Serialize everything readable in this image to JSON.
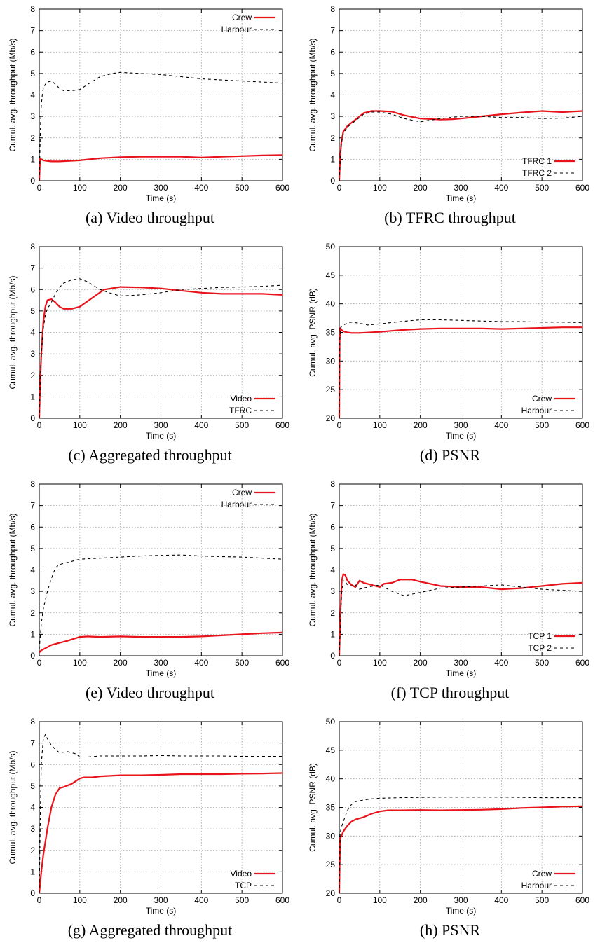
{
  "chart_data": [
    {
      "type": "line",
      "caption": "(a) Video throughput",
      "xlabel": "Time (s)",
      "ylabel": "Cumul. avg. throughput (Mb/s)",
      "xlim": [
        0,
        600
      ],
      "ylim": [
        0,
        8
      ],
      "xticks": [
        0,
        100,
        200,
        300,
        400,
        500,
        600
      ],
      "yticks": [
        0,
        1,
        2,
        3,
        4,
        5,
        6,
        7,
        8
      ],
      "grid": true,
      "legend": "top-right",
      "series": [
        {
          "name": "Crew",
          "style": "solid",
          "color": "#e8131b",
          "x": [
            0,
            2,
            5,
            10,
            20,
            30,
            50,
            80,
            100,
            150,
            200,
            250,
            300,
            350,
            400,
            450,
            500,
            550,
            600
          ],
          "y": [
            0,
            1.05,
            1.0,
            0.95,
            0.92,
            0.9,
            0.9,
            0.93,
            0.95,
            1.05,
            1.1,
            1.12,
            1.12,
            1.12,
            1.08,
            1.12,
            1.15,
            1.18,
            1.2
          ]
        },
        {
          "name": "Harbour",
          "style": "dashed",
          "color": "#000000",
          "x": [
            0,
            3,
            5,
            8,
            10,
            15,
            20,
            30,
            40,
            50,
            60,
            80,
            100,
            120,
            150,
            180,
            200,
            250,
            300,
            350,
            400,
            450,
            500,
            550,
            600
          ],
          "y": [
            0,
            2.5,
            3.5,
            4.1,
            4.3,
            4.5,
            4.6,
            4.65,
            4.5,
            4.3,
            4.2,
            4.2,
            4.25,
            4.5,
            4.85,
            5.0,
            5.05,
            5.0,
            4.95,
            4.85,
            4.75,
            4.7,
            4.65,
            4.6,
            4.55
          ]
        }
      ]
    },
    {
      "type": "line",
      "caption": "(b) TFRC throughput",
      "xlabel": "Time (s)",
      "ylabel": "Cumul. avg. throughput (Mb/s)",
      "xlim": [
        0,
        600
      ],
      "ylim": [
        0,
        8
      ],
      "xticks": [
        0,
        100,
        200,
        300,
        400,
        500,
        600
      ],
      "yticks": [
        0,
        1,
        2,
        3,
        4,
        5,
        6,
        7,
        8
      ],
      "grid": true,
      "legend": "bottom-right",
      "series": [
        {
          "name": "TFRC 1",
          "style": "solid",
          "color": "#e8131b",
          "x": [
            0,
            2,
            5,
            10,
            20,
            30,
            40,
            60,
            80,
            100,
            130,
            160,
            200,
            250,
            280,
            300,
            350,
            400,
            450,
            500,
            550,
            600
          ],
          "y": [
            0,
            1.0,
            1.8,
            2.3,
            2.55,
            2.7,
            2.85,
            3.15,
            3.25,
            3.25,
            3.22,
            3.05,
            2.9,
            2.85,
            2.87,
            2.9,
            3.0,
            3.1,
            3.18,
            3.25,
            3.2,
            3.25
          ]
        },
        {
          "name": "TFRC 2",
          "style": "dashed",
          "color": "#000000",
          "x": [
            0,
            2,
            5,
            10,
            20,
            30,
            40,
            60,
            80,
            100,
            130,
            160,
            200,
            250,
            300,
            350,
            400,
            450,
            500,
            550,
            600
          ],
          "y": [
            0,
            0.9,
            1.7,
            2.2,
            2.5,
            2.65,
            2.8,
            3.1,
            3.2,
            3.2,
            3.1,
            2.9,
            2.75,
            2.9,
            3.0,
            3.0,
            2.95,
            2.95,
            2.9,
            2.92,
            3.0
          ]
        }
      ]
    },
    {
      "type": "line",
      "caption": "(c) Aggregated throughput",
      "xlabel": "Time (s)",
      "ylabel": "Cumul. avg. throughput (Mb/s)",
      "xlim": [
        0,
        600
      ],
      "ylim": [
        0,
        8
      ],
      "xticks": [
        0,
        100,
        200,
        300,
        400,
        500,
        600
      ],
      "yticks": [
        0,
        1,
        2,
        3,
        4,
        5,
        6,
        7,
        8
      ],
      "grid": true,
      "legend": "bottom-right",
      "series": [
        {
          "name": "Video",
          "style": "solid",
          "color": "#e8131b",
          "x": [
            0,
            2,
            5,
            10,
            15,
            20,
            30,
            40,
            50,
            60,
            80,
            100,
            130,
            160,
            200,
            250,
            300,
            350,
            400,
            450,
            500,
            550,
            600
          ],
          "y": [
            0,
            1.5,
            3.0,
            4.5,
            5.2,
            5.5,
            5.55,
            5.4,
            5.2,
            5.1,
            5.1,
            5.2,
            5.6,
            6.0,
            6.12,
            6.1,
            6.05,
            5.95,
            5.85,
            5.8,
            5.8,
            5.8,
            5.75
          ]
        },
        {
          "name": "TFRC",
          "style": "dashed",
          "color": "#000000",
          "x": [
            0,
            2,
            5,
            10,
            15,
            20,
            30,
            40,
            50,
            60,
            80,
            100,
            120,
            150,
            180,
            200,
            250,
            300,
            350,
            400,
            450,
            500,
            550,
            600
          ],
          "y": [
            0,
            1.5,
            3.0,
            4.2,
            4.8,
            5.1,
            5.4,
            5.8,
            6.1,
            6.3,
            6.45,
            6.5,
            6.35,
            6.0,
            5.8,
            5.7,
            5.75,
            5.85,
            6.0,
            6.05,
            6.1,
            6.12,
            6.15,
            6.2
          ]
        }
      ]
    },
    {
      "type": "line",
      "caption": "(d) PSNR",
      "xlabel": "Time (s)",
      "ylabel": "Cumul. avg. PSNR (dB)",
      "xlim": [
        0,
        600
      ],
      "ylim": [
        20,
        50
      ],
      "xticks": [
        0,
        100,
        200,
        300,
        400,
        500,
        600
      ],
      "yticks": [
        20,
        25,
        30,
        35,
        40,
        45,
        50
      ],
      "grid": true,
      "legend": "bottom-right",
      "series": [
        {
          "name": "Crew",
          "style": "solid",
          "color": "#e8131b",
          "x": [
            0,
            1,
            3,
            5,
            10,
            20,
            30,
            50,
            100,
            150,
            200,
            250,
            300,
            350,
            400,
            450,
            500,
            550,
            600
          ],
          "y": [
            20,
            34,
            35.8,
            35.5,
            35.2,
            35.0,
            34.9,
            34.9,
            35.1,
            35.4,
            35.6,
            35.7,
            35.7,
            35.7,
            35.6,
            35.7,
            35.8,
            35.9,
            35.9
          ]
        },
        {
          "name": "Harbour",
          "style": "dashed",
          "color": "#000000",
          "x": [
            0,
            1,
            3,
            5,
            10,
            20,
            30,
            50,
            70,
            100,
            150,
            200,
            250,
            300,
            350,
            400,
            450,
            500,
            550,
            600
          ],
          "y": [
            20,
            33,
            35.5,
            36.0,
            36.3,
            36.6,
            36.8,
            36.6,
            36.3,
            36.5,
            36.9,
            37.2,
            37.2,
            37.1,
            37.0,
            36.9,
            36.9,
            36.8,
            36.8,
            36.7
          ]
        }
      ]
    },
    {
      "type": "line",
      "caption": "(e) Video throughput",
      "xlabel": "Time (s)",
      "ylabel": "Cumul. avg. throughput (Mb/s)",
      "xlim": [
        0,
        600
      ],
      "ylim": [
        0,
        8
      ],
      "xticks": [
        0,
        100,
        200,
        300,
        400,
        500,
        600
      ],
      "yticks": [
        0,
        1,
        2,
        3,
        4,
        5,
        6,
        7,
        8
      ],
      "grid": true,
      "legend": "top-right",
      "series": [
        {
          "name": "Crew",
          "style": "solid",
          "color": "#e8131b",
          "x": [
            0,
            5,
            10,
            20,
            30,
            50,
            70,
            90,
            100,
            120,
            150,
            200,
            250,
            300,
            350,
            400,
            450,
            500,
            550,
            600
          ],
          "y": [
            0.15,
            0.25,
            0.3,
            0.4,
            0.5,
            0.6,
            0.7,
            0.82,
            0.88,
            0.9,
            0.88,
            0.9,
            0.88,
            0.88,
            0.88,
            0.9,
            0.95,
            1.0,
            1.05,
            1.08
          ]
        },
        {
          "name": "Harbour",
          "style": "dashed",
          "color": "#000000",
          "x": [
            0,
            5,
            10,
            20,
            30,
            40,
            50,
            60,
            80,
            100,
            150,
            200,
            250,
            300,
            350,
            400,
            450,
            500,
            550,
            600
          ],
          "y": [
            0.3,
            1.5,
            2.2,
            3.0,
            3.6,
            4.1,
            4.25,
            4.3,
            4.4,
            4.5,
            4.55,
            4.6,
            4.65,
            4.68,
            4.7,
            4.65,
            4.62,
            4.6,
            4.55,
            4.5
          ]
        }
      ]
    },
    {
      "type": "line",
      "caption": "(f) TCP throughput",
      "xlabel": "Time (s)",
      "ylabel": "Cumul. avg. throughput (Mb/s)",
      "xlim": [
        0,
        600
      ],
      "ylim": [
        0,
        8
      ],
      "xticks": [
        0,
        100,
        200,
        300,
        400,
        500,
        600
      ],
      "yticks": [
        0,
        1,
        2,
        3,
        4,
        5,
        6,
        7,
        8
      ],
      "grid": true,
      "legend": "bottom-right",
      "series": [
        {
          "name": "TCP 1",
          "style": "solid",
          "color": "#e8131b",
          "x": [
            0,
            3,
            6,
            10,
            15,
            20,
            30,
            40,
            50,
            60,
            80,
            100,
            110,
            130,
            150,
            180,
            200,
            250,
            300,
            350,
            400,
            450,
            500,
            550,
            600
          ],
          "y": [
            0,
            2.0,
            3.5,
            3.8,
            3.75,
            3.5,
            3.3,
            3.2,
            3.5,
            3.4,
            3.3,
            3.2,
            3.35,
            3.4,
            3.55,
            3.55,
            3.45,
            3.25,
            3.2,
            3.2,
            3.1,
            3.15,
            3.25,
            3.35,
            3.4
          ]
        },
        {
          "name": "TCP 2",
          "style": "dashed",
          "color": "#000000",
          "x": [
            0,
            3,
            6,
            10,
            15,
            20,
            30,
            40,
            50,
            70,
            100,
            130,
            160,
            200,
            250,
            300,
            350,
            400,
            450,
            500,
            550,
            600
          ],
          "y": [
            0,
            1.5,
            3.0,
            3.5,
            3.45,
            3.3,
            3.25,
            3.3,
            3.1,
            3.2,
            3.3,
            3.0,
            2.8,
            2.95,
            3.15,
            3.2,
            3.25,
            3.3,
            3.2,
            3.1,
            3.05,
            3.0
          ]
        }
      ]
    },
    {
      "type": "line",
      "caption": "(g) Aggregated throughput",
      "xlabel": "Time (s)",
      "ylabel": "Cumul. avg. throughput (Mb/s)",
      "xlim": [
        0,
        600
      ],
      "ylim": [
        0,
        8
      ],
      "xticks": [
        0,
        100,
        200,
        300,
        400,
        500,
        600
      ],
      "yticks": [
        0,
        1,
        2,
        3,
        4,
        5,
        6,
        7,
        8
      ],
      "grid": true,
      "legend": "bottom-right",
      "series": [
        {
          "name": "Video",
          "style": "solid",
          "color": "#e8131b",
          "x": [
            0,
            5,
            10,
            20,
            30,
            40,
            50,
            60,
            80,
            100,
            110,
            130,
            150,
            200,
            250,
            300,
            350,
            400,
            450,
            500,
            550,
            600
          ],
          "y": [
            0,
            1.0,
            1.8,
            3.0,
            4.0,
            4.6,
            4.9,
            4.95,
            5.1,
            5.35,
            5.4,
            5.4,
            5.45,
            5.5,
            5.5,
            5.52,
            5.55,
            5.55,
            5.55,
            5.57,
            5.58,
            5.6
          ]
        },
        {
          "name": "TCP",
          "style": "dashed",
          "color": "#000000",
          "x": [
            0,
            3,
            5,
            10,
            15,
            20,
            30,
            40,
            50,
            70,
            90,
            100,
            120,
            150,
            200,
            250,
            300,
            350,
            400,
            450,
            500,
            550,
            600
          ],
          "y": [
            0,
            4.0,
            6.0,
            7.2,
            7.4,
            7.2,
            6.9,
            6.7,
            6.55,
            6.6,
            6.5,
            6.35,
            6.35,
            6.4,
            6.4,
            6.4,
            6.42,
            6.4,
            6.4,
            6.4,
            6.38,
            6.38,
            6.38
          ]
        }
      ]
    },
    {
      "type": "line",
      "caption": "(h) PSNR",
      "xlabel": "Time (s)",
      "ylabel": "Cumul. avg. PSNR (dB)",
      "xlim": [
        0,
        600
      ],
      "ylim": [
        20,
        50
      ],
      "xticks": [
        0,
        100,
        200,
        300,
        400,
        500,
        600
      ],
      "yticks": [
        20,
        25,
        30,
        35,
        40,
        45,
        50
      ],
      "grid": true,
      "legend": "bottom-right",
      "series": [
        {
          "name": "Crew",
          "style": "solid",
          "color": "#e8131b",
          "x": [
            0,
            2,
            5,
            10,
            20,
            30,
            40,
            60,
            80,
            100,
            120,
            150,
            200,
            250,
            300,
            350,
            400,
            450,
            500,
            550,
            600
          ],
          "y": [
            20,
            29.5,
            30.0,
            30.8,
            31.8,
            32.5,
            32.9,
            33.3,
            33.9,
            34.3,
            34.5,
            34.5,
            34.55,
            34.5,
            34.55,
            34.6,
            34.7,
            34.9,
            35.0,
            35.15,
            35.2
          ]
        },
        {
          "name": "Harbour",
          "style": "dashed",
          "color": "#000000",
          "x": [
            0,
            2,
            5,
            10,
            20,
            30,
            40,
            60,
            80,
            100,
            150,
            200,
            250,
            300,
            350,
            400,
            450,
            500,
            550,
            600
          ],
          "y": [
            20,
            30.5,
            31.5,
            32.5,
            34.5,
            35.5,
            36.0,
            36.3,
            36.5,
            36.6,
            36.7,
            36.75,
            36.8,
            36.8,
            36.8,
            36.8,
            36.75,
            36.7,
            36.7,
            36.7
          ]
        }
      ]
    }
  ]
}
